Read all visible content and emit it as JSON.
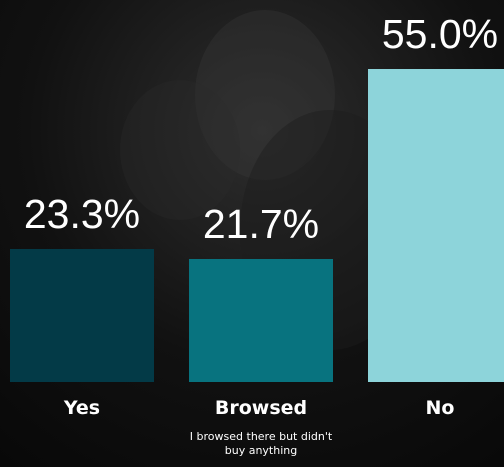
{
  "chart_data": {
    "type": "bar",
    "categories": [
      "Yes",
      "Browsed",
      "No"
    ],
    "values": [
      23.3,
      21.7,
      55.0
    ],
    "value_labels": [
      "23.3%",
      "21.7%",
      "55.0%"
    ],
    "notes": [
      "",
      "I browsed there but didn't buy anything",
      ""
    ],
    "colors": [
      "#033a47",
      "#08737f",
      "#8dd4da"
    ],
    "title": "",
    "xlabel": "",
    "ylabel": "",
    "ylim": [
      0,
      55.0
    ],
    "grid": false,
    "legend": "none"
  }
}
